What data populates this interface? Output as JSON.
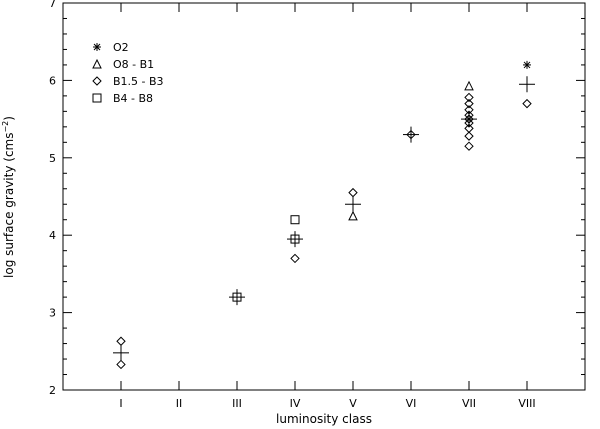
{
  "chart_data": {
    "type": "scatter",
    "title": "",
    "xlabel": "luminosity class",
    "ylabel": "log surface gravity (cms",
    "ylabel_sup": "−2",
    "ylabel_close": ")",
    "categories": [
      "I",
      "II",
      "III",
      "IV",
      "V",
      "VI",
      "VII",
      "VIII"
    ],
    "xlim": [
      0,
      9
    ],
    "ylim": [
      2,
      7
    ],
    "yticks": [
      2,
      3,
      4,
      5,
      6,
      7
    ],
    "legend_position": "top-left",
    "grid": false,
    "series": [
      {
        "name": "O2",
        "marker": "asterisk",
        "points": [
          [
            8,
            6.2
          ]
        ]
      },
      {
        "name": "O8 - B1",
        "marker": "triangle",
        "points": [
          [
            5,
            4.25
          ],
          [
            7,
            5.93
          ]
        ]
      },
      {
        "name": "B1.5 - B3",
        "marker": "diamond",
        "points": [
          [
            1,
            2.63
          ],
          [
            1,
            2.33
          ],
          [
            4,
            3.7
          ],
          [
            5,
            4.55
          ],
          [
            6,
            5.3
          ],
          [
            7,
            5.78
          ],
          [
            7,
            5.7
          ],
          [
            7,
            5.62
          ],
          [
            7,
            5.55
          ],
          [
            7,
            5.5
          ],
          [
            7,
            5.45
          ],
          [
            7,
            5.38
          ],
          [
            7,
            5.28
          ],
          [
            7,
            5.15
          ],
          [
            8,
            5.7
          ]
        ]
      },
      {
        "name": "B4 - B8",
        "marker": "square",
        "points": [
          [
            3,
            3.2
          ],
          [
            4,
            4.2
          ],
          [
            4,
            3.95
          ]
        ]
      },
      {
        "name": "",
        "marker": "plus",
        "points": [
          [
            1,
            2.48
          ],
          [
            3,
            3.2
          ],
          [
            4,
            3.95
          ],
          [
            5,
            4.4
          ],
          [
            6,
            5.3
          ],
          [
            7,
            5.5
          ],
          [
            8,
            5.95
          ]
        ]
      }
    ]
  }
}
